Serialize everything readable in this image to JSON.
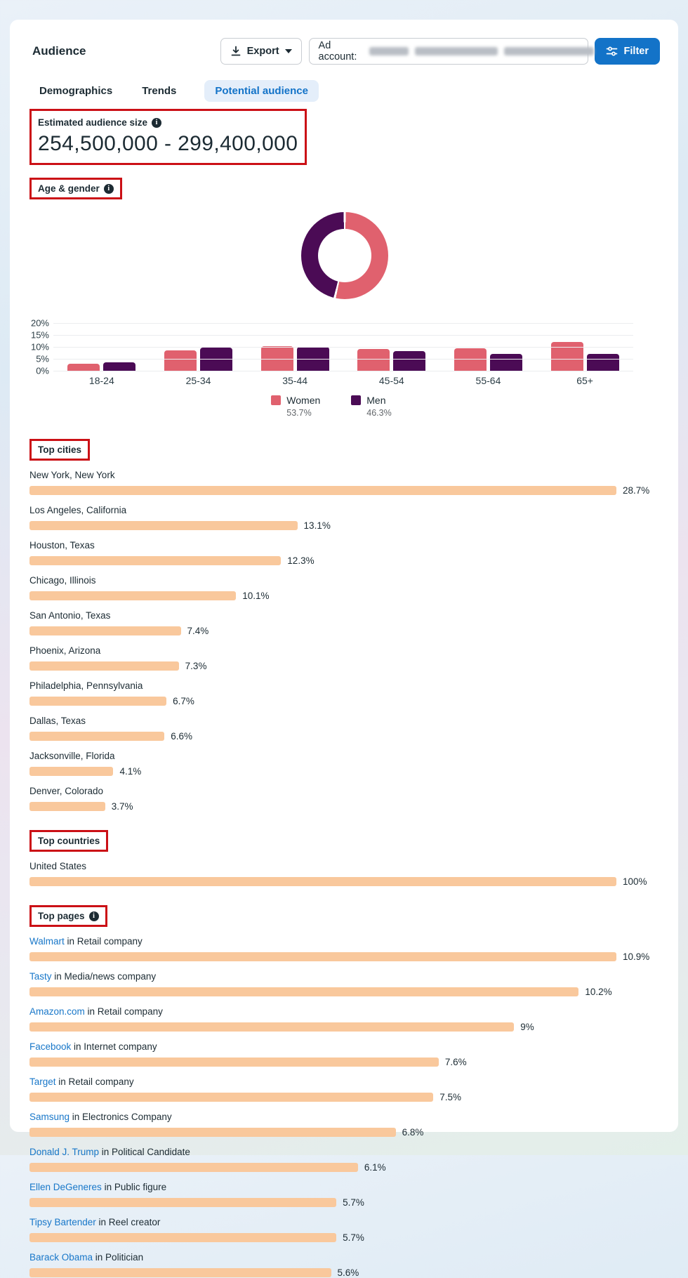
{
  "colors": {
    "accent_blue": "#1373c8",
    "link_blue": "#1877c9",
    "women_pink": "#e0616e",
    "men_purple": "#4b0b55",
    "bar_peach": "#f9c89c",
    "annotation_red": "#cb1016",
    "text_dark": "#1c2b33",
    "text_gray": "#63676b"
  },
  "header": {
    "title": "Audience",
    "export_label": "Export",
    "ad_account_label": "Ad account:",
    "filter_label": "Filter"
  },
  "tabs": [
    {
      "label": "Demographics",
      "active": false
    },
    {
      "label": "Trends",
      "active": false
    },
    {
      "label": "Potential audience",
      "active": true
    }
  ],
  "estimate": {
    "label": "Estimated audience size",
    "value": "254,500,000 - 299,400,000"
  },
  "sections": {
    "age_gender": {
      "title": "Age & gender",
      "has_info": true
    },
    "top_cities": {
      "title": "Top cities",
      "has_info": false
    },
    "top_countries": {
      "title": "Top countries",
      "has_info": false
    },
    "top_pages": {
      "title": "Top pages",
      "has_info": true
    }
  },
  "chart_data": [
    {
      "id": "gender_donut",
      "type": "pie",
      "title": "Gender share",
      "slices": [
        {
          "label": "Women",
          "value": 53.7,
          "display": "53.7%",
          "color": "#e0616e"
        },
        {
          "label": "Men",
          "value": 46.3,
          "display": "46.3%",
          "color": "#4b0b55"
        }
      ],
      "legend_position": "bottom"
    },
    {
      "id": "age_gender_bars",
      "type": "bar",
      "categories": [
        "18-24",
        "25-34",
        "35-44",
        "45-54",
        "55-64",
        "65+"
      ],
      "series": [
        {
          "name": "Women",
          "color": "#e0616e",
          "values": [
            3,
            8.5,
            10.4,
            9.1,
            9.4,
            12.1
          ]
        },
        {
          "name": "Men",
          "color": "#4b0b55",
          "values": [
            3.5,
            9.7,
            10.1,
            8.2,
            7.1,
            7.1
          ]
        }
      ],
      "ylim": [
        0,
        20
      ],
      "yticks": [
        0,
        5,
        10,
        15,
        20
      ],
      "ytick_labels": [
        "0%",
        "5%",
        "10%",
        "15%",
        "20%"
      ],
      "grid": true,
      "legend_position": "bottom"
    },
    {
      "id": "top_cities",
      "type": "bar",
      "orientation": "horizontal",
      "rows": [
        {
          "label": "New York, New York",
          "value": 28.7,
          "display": "28.7%"
        },
        {
          "label": "Los Angeles, California",
          "value": 13.1,
          "display": "13.1%"
        },
        {
          "label": "Houston, Texas",
          "value": 12.3,
          "display": "12.3%"
        },
        {
          "label": "Chicago, Illinois",
          "value": 10.1,
          "display": "10.1%"
        },
        {
          "label": "San Antonio, Texas",
          "value": 7.4,
          "display": "7.4%"
        },
        {
          "label": "Phoenix, Arizona",
          "value": 7.3,
          "display": "7.3%"
        },
        {
          "label": "Philadelphia, Pennsylvania",
          "value": 6.7,
          "display": "6.7%"
        },
        {
          "label": "Dallas, Texas",
          "value": 6.6,
          "display": "6.6%"
        },
        {
          "label": "Jacksonville, Florida",
          "value": 4.1,
          "display": "4.1%"
        },
        {
          "label": "Denver, Colorado",
          "value": 3.7,
          "display": "3.7%"
        }
      ]
    },
    {
      "id": "top_countries",
      "type": "bar",
      "orientation": "horizontal",
      "rows": [
        {
          "label": "United States",
          "value": 100,
          "display": "100%"
        }
      ]
    },
    {
      "id": "top_pages",
      "type": "bar",
      "orientation": "horizontal",
      "rows": [
        {
          "link": "Walmart",
          "connector": "in",
          "category": "Retail company",
          "value": 10.9,
          "display": "10.9%"
        },
        {
          "link": "Tasty",
          "connector": "in",
          "category": "Media/news company",
          "value": 10.2,
          "display": "10.2%"
        },
        {
          "link": "Amazon.com",
          "connector": "in",
          "category": "Retail company",
          "value": 9,
          "display": "9%"
        },
        {
          "link": "Facebook",
          "connector": "in",
          "category": "Internet company",
          "value": 7.6,
          "display": "7.6%"
        },
        {
          "link": "Target",
          "connector": "in",
          "category": "Retail company",
          "value": 7.5,
          "display": "7.5%"
        },
        {
          "link": "Samsung",
          "connector": "in",
          "category": "Electronics Company",
          "value": 6.8,
          "display": "6.8%"
        },
        {
          "link": "Donald J. Trump",
          "connector": "in",
          "category": "Political Candidate",
          "value": 6.1,
          "display": "6.1%"
        },
        {
          "link": "Ellen DeGeneres",
          "connector": "in",
          "category": "Public figure",
          "value": 5.7,
          "display": "5.7%"
        },
        {
          "link": "Tipsy Bartender",
          "connector": "in",
          "category": "Reel creator",
          "value": 5.7,
          "display": "5.7%"
        },
        {
          "link": "Barack Obama",
          "connector": "in",
          "category": "Politician",
          "value": 5.6,
          "display": "5.6%"
        }
      ]
    }
  ]
}
